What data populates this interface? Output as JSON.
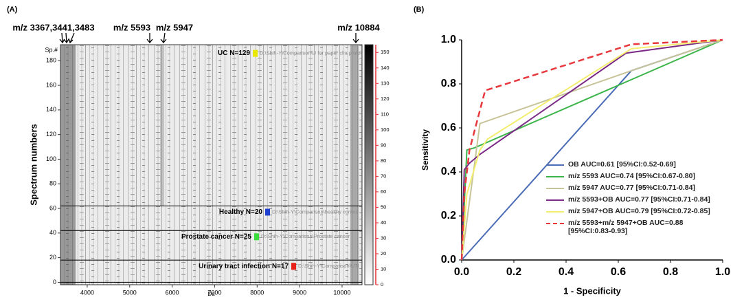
{
  "chart_data": [
    {
      "type": "gel",
      "title": "(A)",
      "xlabel": "Da",
      "ylabel": "Spectrum numbers",
      "y_unit_label": "Sp.#",
      "xlim": [
        3370,
        10470
      ],
      "xticks": [
        4000,
        5000,
        6000,
        7000,
        8000,
        9000,
        10000
      ],
      "ylim": [
        -2,
        193
      ],
      "yticks": [
        0,
        20,
        40,
        60,
        80,
        100,
        120,
        140,
        160,
        180
      ],
      "annotations": [
        "m/z 3367,3441,3483",
        "m/z 5593",
        "m/z 5947",
        "m/z 10884"
      ],
      "groups": [
        {
          "name": "UC N=129",
          "color": "#e8e800",
          "path": "D:\\Shih-Y\\Comparison\\U for paper clin protoco",
          "range": [
            62,
            191
          ]
        },
        {
          "name": "Healthy N=20",
          "color": "#1f3fd0",
          "path": "D:\\Shih-Y\\Comparison\\healthy control",
          "range": [
            42,
            62
          ]
        },
        {
          "name": "Prostate cancer N=25",
          "color": "#3ddc3d",
          "path": "D:\\Shih-Y\\Comparison\\Prostate cancer",
          "range": [
            18,
            42
          ]
        },
        {
          "name": "Urinary tract infection N=17",
          "color": "#e8201a",
          "path": "D:\\Shih-Y\\Comparison\\UTI",
          "range": [
            0,
            18
          ]
        }
      ],
      "colorbar": {
        "lim": [
          0,
          155
        ],
        "ticks": [
          0,
          10,
          20,
          30,
          40,
          50,
          60,
          70,
          80,
          90,
          100,
          110,
          120,
          130,
          140,
          150
        ]
      }
    },
    {
      "type": "line",
      "title": "(B)",
      "xlabel": "1 - Specificity",
      "ylabel": "Sensitivity",
      "xlim": [
        0,
        1
      ],
      "ylim": [
        0,
        1
      ],
      "xticks": [
        {
          "value": 0,
          "label": "0.0"
        },
        0.2,
        0.4,
        0.6,
        0.8,
        {
          "value": 1,
          "label": "1.0"
        }
      ],
      "yticks": [
        {
          "value": 0,
          "label": "0.0"
        },
        0.2,
        0.4,
        0.6,
        0.8,
        {
          "value": 1,
          "label": "1.0"
        }
      ],
      "series": [
        {
          "name": "OB AUC=0.61 [95%CI:0.52-0.69]",
          "color": "#4a6bb5",
          "linestyle": "solid",
          "x": [
            0,
            0.65,
            1
          ],
          "values": [
            0,
            0.86,
            1
          ]
        },
        {
          "name": "m/z 5593 AUC=0.74 [95%CI:0.67-0.80]",
          "color": "#3cb54a",
          "linestyle": "solid",
          "x": [
            0,
            0.02,
            0.05,
            1
          ],
          "values": [
            0,
            0.5,
            0.51,
            1
          ]
        },
        {
          "name": "m/z 5947 AUC=0.77 [95%CI:0.71-0.84]",
          "color": "#c8c49a",
          "linestyle": "solid",
          "x": [
            0,
            0.07,
            0.65,
            1
          ],
          "values": [
            0,
            0.62,
            0.86,
            1
          ]
        },
        {
          "name": "m/z 5593+OB AUC=0.77 [95%CI:0.71-0.84]",
          "color": "#7b2a86",
          "linestyle": "solid",
          "x": [
            0,
            0.01,
            0.03,
            0.07,
            0.63,
            1
          ],
          "values": [
            0,
            0.41,
            0.44,
            0.48,
            0.94,
            1
          ]
        },
        {
          "name": "m/z 5947+OB AUC=0.79 [95%CI:0.72-0.85]",
          "color": "#f3ee6e",
          "linestyle": "solid",
          "x": [
            0,
            0.02,
            0.07,
            0.1,
            0.65,
            1
          ],
          "values": [
            0,
            0.3,
            0.5,
            0.55,
            0.96,
            1
          ]
        },
        {
          "name": "m/z 5593+m/z 5947+OB AUC=0.88 [95%CI:0.83-0.93]",
          "color": "#e8383d",
          "linestyle": "dashed",
          "x": [
            0,
            0.01,
            0.03,
            0.09,
            0.65,
            1
          ],
          "values": [
            0,
            0.3,
            0.5,
            0.77,
            0.98,
            1
          ]
        }
      ]
    }
  ]
}
